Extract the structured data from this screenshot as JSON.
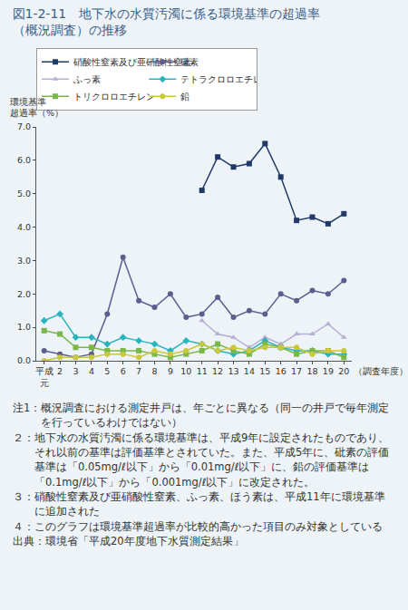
{
  "chart_data": {
    "type": "line",
    "title": "図1-2-11　地下水の水質汚濁に係る環境基準の超過率\n（概況調査）の推移",
    "y_label": "環境基準\n超過率（%）",
    "x_label": "（調査年度）",
    "categories": [
      "平成\n元",
      "2",
      "3",
      "4",
      "5",
      "6",
      "7",
      "8",
      "9",
      "10",
      "11",
      "12",
      "13",
      "14",
      "15",
      "16",
      "17",
      "18",
      "19",
      "20"
    ],
    "series": [
      {
        "name": "硝酸性窒素及び亜硝酸性窒素",
        "color": "#1f3a68",
        "marker": "square",
        "values": [
          null,
          null,
          null,
          null,
          null,
          null,
          null,
          null,
          null,
          null,
          5.1,
          6.1,
          5.8,
          5.9,
          6.5,
          5.5,
          4.2,
          4.3,
          4.1,
          4.4
        ]
      },
      {
        "name": "砒素",
        "color": "#5f5c8e",
        "marker": "circle",
        "values": [
          0.3,
          0.2,
          0.1,
          0.2,
          1.4,
          3.1,
          1.8,
          1.6,
          2.0,
          1.3,
          1.4,
          1.9,
          1.3,
          1.5,
          1.4,
          2.0,
          1.8,
          2.1,
          2.0,
          2.4
        ]
      },
      {
        "name": "ふっ素",
        "color": "#b3b0d4",
        "marker": "triangle-up",
        "values": [
          null,
          null,
          null,
          null,
          null,
          null,
          null,
          null,
          null,
          null,
          1.2,
          0.8,
          0.7,
          0.4,
          0.7,
          0.5,
          0.8,
          0.8,
          1.1,
          0.7
        ]
      },
      {
        "name": "テトラクロロエチレン",
        "color": "#2ab3bf",
        "marker": "diamond",
        "values": [
          1.2,
          1.4,
          0.7,
          0.7,
          0.5,
          0.7,
          0.6,
          0.5,
          0.3,
          0.6,
          0.5,
          0.3,
          0.2,
          0.3,
          0.6,
          0.4,
          0.3,
          0.3,
          0.2,
          0.2
        ]
      },
      {
        "name": "トリクロロエチレン",
        "color": "#7ab648",
        "marker": "square",
        "values": [
          0.9,
          0.8,
          0.4,
          0.4,
          0.3,
          0.3,
          0.3,
          0.2,
          0.1,
          0.2,
          0.3,
          0.5,
          0.3,
          0.2,
          0.5,
          0.4,
          0.2,
          0.3,
          0.3,
          0.1
        ]
      },
      {
        "name": "鉛",
        "color": "#c9c83c",
        "marker": "circle",
        "values": [
          0.0,
          0.1,
          0.1,
          0.1,
          0.2,
          0.2,
          0.1,
          0.3,
          0.2,
          0.3,
          0.5,
          0.3,
          0.4,
          0.3,
          0.4,
          0.4,
          0.4,
          0.2,
          0.3,
          0.3
        ]
      }
    ],
    "ylim": [
      0,
      7
    ],
    "yticks": [
      {
        "value": 0,
        "label": "0.0"
      },
      {
        "value": 1,
        "label": "1.0"
      },
      {
        "value": 2,
        "label": "2.0"
      },
      {
        "value": 3,
        "label": "3.0"
      },
      {
        "value": 4,
        "label": "4.0"
      },
      {
        "value": 5,
        "label": "5.0"
      },
      {
        "value": 6,
        "label": "6.0"
      },
      {
        "value": 7,
        "label": "7.0"
      }
    ],
    "grid": false,
    "legend": "top"
  },
  "notes": [
    {
      "label": "注1：",
      "text": "概況調査における測定井戸は、年ごとに異なる（同一の井戸で毎年測定を行っているわけではない）"
    },
    {
      "label": "２：",
      "text": "地下水の水質汚濁に係る環境基準は、平成9年に設定されたものであり、それ以前の基準は評価基準とされていた。また、平成5年に、砒素の評価基準は「0.05mg/ℓ以下」から「0.01mg/ℓ以下」に、鉛の評価基準は「0.1mg/ℓ以下」から「0.001mg/ℓ以下」に改定された。"
    },
    {
      "label": "３：",
      "text": "硝酸性窒素及び亜硝酸性窒素、ふっ素、ほう素は、平成11年に環境基準に追加された"
    },
    {
      "label": "４：",
      "text": "このグラフは環境基準超過率が比較的高かった項目のみ対象としている"
    }
  ],
  "source": "出典：環境省「平成20年度地下水質測定結果」"
}
